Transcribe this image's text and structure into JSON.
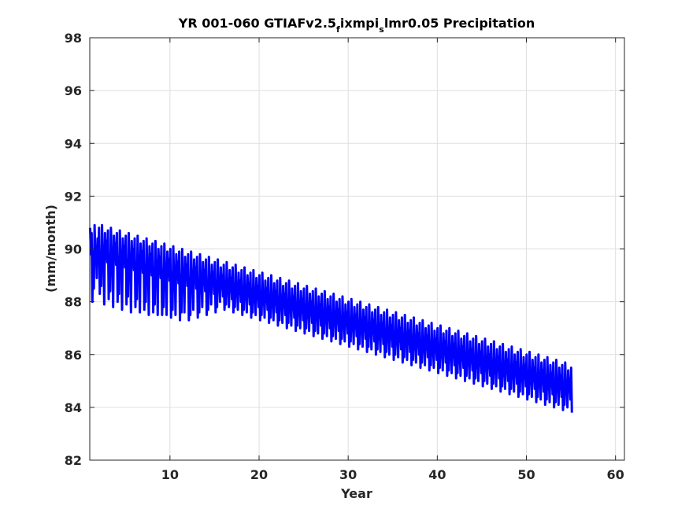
{
  "chart_data": {
    "type": "line",
    "title_parts": {
      "main": "YR 001-060 GTIAFv2.5",
      "sub_f": "f",
      "mid": "ixmpi",
      "sub_s": "s",
      "end": "lmr0.05 Precipitation"
    },
    "xlabel": "Year",
    "ylabel": "(mm/month)",
    "xlim": [
      1,
      61
    ],
    "ylim": [
      82,
      98
    ],
    "xticks": [
      10,
      20,
      30,
      40,
      50,
      60
    ],
    "yticks": [
      82,
      84,
      86,
      88,
      90,
      92,
      94,
      96,
      98
    ],
    "grid": true,
    "line_color": "#0000ff",
    "series": [
      {
        "x_start": 1.0417,
        "x_step": 0.0833,
        "values": [
          90.8,
          89.8,
          90.6,
          88.0,
          89.9,
          88.5,
          90.9,
          89.6,
          90.1,
          88.9,
          90.4,
          89.7,
          90.8,
          88.3,
          89.9,
          88.6,
          90.9,
          89.7,
          90.0,
          87.9,
          90.6,
          89.8,
          90.3,
          89.5,
          90.7,
          88.1,
          89.8,
          88.4,
          90.8,
          89.6,
          90.0,
          87.8,
          90.5,
          89.7,
          90.2,
          89.4,
          90.6,
          88.0,
          89.7,
          88.3,
          90.7,
          89.5,
          89.9,
          87.7,
          90.4,
          89.6,
          90.1,
          89.3,
          90.5,
          87.9,
          89.6,
          88.2,
          90.6,
          89.4,
          89.8,
          87.6,
          90.3,
          89.5,
          90.0,
          89.2,
          90.4,
          87.8,
          89.5,
          88.1,
          90.5,
          89.3,
          89.7,
          87.6,
          90.2,
          89.4,
          89.9,
          89.1,
          90.3,
          87.7,
          89.4,
          88.0,
          90.4,
          89.2,
          89.6,
          87.5,
          90.1,
          89.3,
          89.8,
          89.0,
          90.2,
          87.6,
          89.3,
          87.9,
          90.3,
          89.1,
          89.5,
          87.5,
          90.0,
          89.2,
          89.7,
          88.9,
          90.1,
          87.5,
          89.2,
          87.8,
          90.2,
          89.0,
          89.4,
          87.5,
          89.9,
          89.1,
          89.6,
          88.8,
          90.0,
          87.4,
          89.1,
          87.7,
          90.1,
          88.9,
          89.3,
          87.5,
          89.8,
          89.0,
          89.5,
          88.7,
          89.9,
          87.3,
          89.0,
          87.6,
          90.0,
          88.8,
          89.2,
          87.6,
          89.7,
          88.9,
          89.4,
          88.6,
          89.8,
          87.3,
          88.9,
          87.5,
          89.9,
          88.7,
          89.1,
          87.7,
          89.6,
          88.8,
          89.3,
          88.5,
          89.7,
          87.4,
          88.8,
          87.6,
          89.8,
          88.6,
          89.0,
          87.8,
          89.5,
          88.7,
          89.2,
          88.4,
          89.6,
          87.5,
          88.7,
          87.7,
          89.7,
          88.5,
          88.9,
          87.9,
          89.4,
          88.6,
          89.1,
          88.3,
          89.5,
          87.6,
          88.6,
          87.8,
          89.6,
          88.4,
          88.8,
          88.0,
          89.3,
          88.5,
          89.0,
          88.2,
          89.4,
          87.7,
          88.5,
          87.9,
          89.5,
          88.3,
          88.7,
          87.8,
          89.2,
          88.4,
          88.9,
          88.1,
          89.3,
          87.6,
          88.4,
          87.8,
          89.4,
          88.2,
          88.6,
          87.7,
          89.1,
          88.3,
          88.8,
          88.0,
          89.2,
          87.5,
          88.3,
          87.7,
          89.3,
          88.1,
          88.5,
          87.6,
          89.0,
          88.2,
          88.7,
          87.9,
          89.1,
          87.4,
          88.2,
          87.6,
          89.2,
          88.0,
          88.4,
          87.5,
          88.9,
          88.1,
          88.6,
          87.8,
          89.0,
          87.3,
          88.1,
          87.5,
          89.1,
          87.9,
          88.3,
          87.4,
          88.8,
          88.0,
          88.5,
          87.7,
          88.9,
          87.2,
          88.0,
          87.4,
          89.0,
          87.8,
          88.2,
          87.3,
          88.7,
          87.9,
          88.4,
          87.6,
          88.8,
          87.1,
          87.9,
          87.3,
          88.9,
          87.7,
          88.1,
          87.2,
          88.6,
          87.8,
          88.3,
          87.5,
          88.7,
          87.0,
          87.8,
          87.2,
          88.8,
          87.6,
          88.0,
          87.1,
          88.5,
          87.7,
          88.2,
          87.4,
          88.6,
          86.9,
          87.7,
          87.1,
          88.7,
          87.5,
          87.9,
          87.0,
          88.4,
          87.6,
          88.1,
          87.3,
          88.5,
          86.8,
          87.6,
          87.0,
          88.6,
          87.4,
          87.8,
          86.9,
          88.3,
          87.5,
          88.0,
          87.2,
          88.4,
          86.7,
          87.5,
          86.9,
          88.5,
          87.3,
          87.7,
          86.8,
          88.2,
          87.4,
          87.9,
          87.1,
          88.3,
          86.6,
          87.4,
          86.8,
          88.4,
          87.2,
          87.6,
          86.7,
          88.1,
          87.3,
          87.8,
          87.0,
          88.2,
          86.5,
          87.3,
          86.7,
          88.3,
          87.1,
          87.5,
          86.6,
          88.0,
          87.2,
          87.7,
          86.9,
          88.1,
          86.4,
          87.2,
          86.6,
          88.2,
          87.0,
          87.4,
          86.5,
          87.9,
          87.1,
          87.6,
          86.8,
          88.0,
          86.3,
          87.1,
          86.5,
          88.1,
          86.9,
          87.3,
          86.4,
          87.8,
          87.0,
          87.5,
          86.7,
          87.9,
          86.2,
          87.0,
          86.4,
          88.0,
          86.8,
          87.2,
          86.3,
          87.7,
          86.9,
          87.4,
          86.6,
          87.8,
          86.1,
          86.9,
          86.3,
          87.9,
          86.7,
          87.1,
          86.2,
          87.6,
          86.8,
          87.3,
          86.5,
          87.7,
          86.0,
          86.8,
          86.2,
          87.8,
          86.6,
          87.0,
          86.1,
          87.5,
          86.7,
          87.2,
          86.4,
          87.6,
          85.9,
          86.7,
          86.1,
          87.7,
          86.5,
          86.9,
          86.0,
          87.4,
          86.6,
          87.1,
          86.3,
          87.5,
          85.8,
          86.6,
          86.0,
          87.6,
          86.4,
          86.8,
          85.9,
          87.3,
          86.5,
          87.0,
          86.2,
          87.4,
          85.7,
          86.5,
          85.9,
          87.5,
          86.3,
          86.7,
          85.8,
          87.2,
          86.4,
          86.9,
          86.1,
          87.3,
          85.6,
          86.4,
          85.8,
          87.4,
          86.2,
          86.6,
          85.7,
          87.1,
          86.3,
          86.8,
          86.0,
          87.2,
          85.5,
          86.3,
          85.7,
          87.3,
          86.1,
          86.5,
          85.6,
          87.0,
          86.2,
          86.7,
          85.9,
          87.1,
          85.4,
          86.2,
          85.6,
          87.2,
          86.0,
          86.4,
          85.5,
          86.9,
          86.1,
          86.6,
          85.8,
          87.0,
          85.3,
          86.1,
          85.5,
          87.1,
          85.9,
          86.3,
          85.4,
          86.8,
          86.0,
          86.5,
          85.7,
          86.9,
          85.2,
          86.0,
          85.4,
          87.0,
          85.8,
          86.2,
          85.3,
          86.7,
          85.9,
          86.4,
          85.6,
          86.8,
          85.1,
          85.9,
          85.3,
          86.9,
          85.7,
          86.1,
          85.2,
          86.6,
          85.8,
          86.3,
          85.5,
          86.7,
          85.0,
          85.8,
          85.2,
          86.8,
          85.6,
          86.0,
          85.1,
          86.5,
          85.7,
          86.2,
          85.4,
          86.6,
          84.9,
          85.7,
          85.1,
          86.7,
          85.5,
          85.9,
          85.0,
          86.4,
          85.6,
          86.1,
          85.3,
          86.5,
          84.8,
          85.6,
          85.0,
          86.6,
          85.4,
          85.8,
          84.9,
          86.3,
          85.5,
          86.0,
          85.2,
          86.4,
          84.7,
          85.5,
          84.9,
          86.5,
          85.3,
          85.7,
          84.8,
          86.2,
          85.4,
          85.9,
          85.1,
          86.3,
          84.6,
          85.4,
          84.8,
          86.4,
          85.2,
          85.6,
          84.7,
          86.1,
          85.3,
          85.8,
          85.0,
          86.2,
          84.5,
          85.3,
          84.7,
          86.3,
          85.1,
          85.5,
          84.6,
          86.0,
          85.2,
          85.7,
          84.9,
          86.1,
          84.4,
          85.2,
          84.6,
          86.2,
          85.0,
          85.4,
          84.5,
          85.9,
          85.1,
          85.6,
          84.8,
          86.0,
          84.3,
          85.1,
          84.5,
          86.1,
          84.9,
          85.3,
          84.4,
          85.8,
          85.0,
          85.5,
          84.7,
          85.9,
          84.2,
          85.0,
          84.4,
          86.0,
          84.8,
          85.2,
          84.3,
          85.7,
          84.9,
          85.4,
          84.6,
          85.8,
          84.1,
          84.9,
          84.3,
          85.9,
          84.7,
          85.1,
          84.2,
          85.6,
          84.8,
          85.3,
          84.5,
          85.7,
          84.0,
          84.8,
          84.2,
          85.8,
          84.6,
          85.0,
          84.1,
          85.5,
          84.7,
          85.2,
          84.4,
          85.6,
          83.9,
          84.7,
          84.1,
          85.7,
          84.5,
          84.9,
          84.0,
          85.4,
          84.6,
          85.1,
          84.3,
          85.5,
          83.8
        ]
      }
    ]
  }
}
